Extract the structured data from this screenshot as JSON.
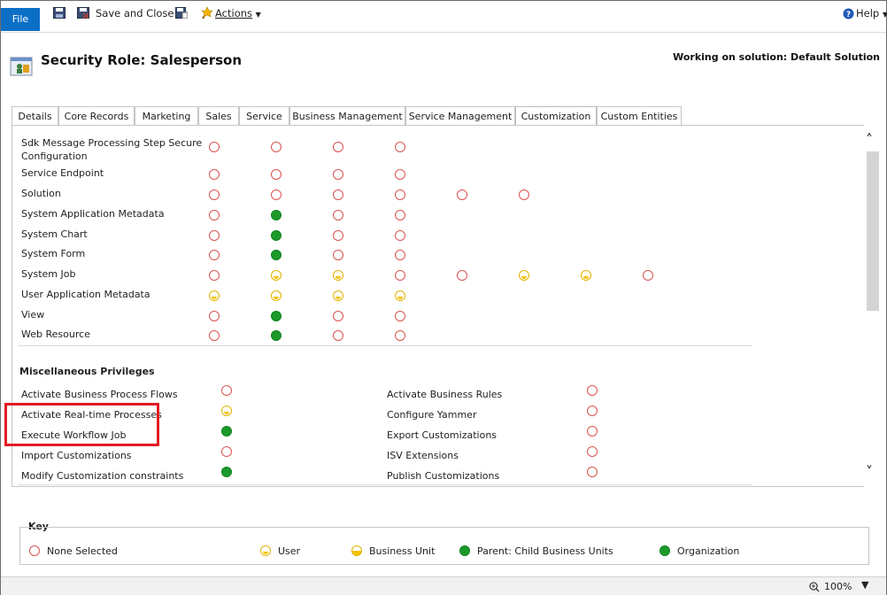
{
  "toolbar": {
    "file_label": "File",
    "save_close_label": "Save and Close",
    "actions_label": "Actions",
    "help_label": "Help"
  },
  "header": {
    "title": "Security Role: Salesperson",
    "solution": "Working on solution: Default Solution"
  },
  "tabs": [
    {
      "label": "Details"
    },
    {
      "label": "Core Records"
    },
    {
      "label": "Marketing"
    },
    {
      "label": "Sales"
    },
    {
      "label": "Service"
    },
    {
      "label": "Business Management"
    },
    {
      "label": "Service Management"
    },
    {
      "label": "Customization",
      "active": true
    },
    {
      "label": "Custom Entities"
    }
  ],
  "entity_rows": [
    {
      "label": "Sdk Message Processing Step Secure Configuration",
      "privileges": [
        "none",
        "none",
        "none",
        "none"
      ]
    },
    {
      "label": "Service Endpoint",
      "privileges": [
        "none",
        "none",
        "none",
        "none"
      ]
    },
    {
      "label": "Solution",
      "privileges": [
        "none",
        "none",
        "none",
        "none",
        "none",
        "none"
      ]
    },
    {
      "label": "System Application Metadata",
      "privileges": [
        "none",
        "org",
        "none",
        "none"
      ]
    },
    {
      "label": "System Chart",
      "privileges": [
        "none",
        "org",
        "none",
        "none"
      ]
    },
    {
      "label": "System Form",
      "privileges": [
        "none",
        "org",
        "none",
        "none"
      ]
    },
    {
      "label": "System Job",
      "privileges": [
        "none",
        "user",
        "user",
        "none",
        "none",
        "user",
        "user",
        "none"
      ]
    },
    {
      "label": "User Application Metadata",
      "privileges": [
        "user",
        "user",
        "user",
        "user"
      ]
    },
    {
      "label": "View",
      "privileges": [
        "none",
        "org",
        "none",
        "none"
      ]
    },
    {
      "label": "Web Resource",
      "privileges": [
        "none",
        "org",
        "none",
        "none"
      ]
    }
  ],
  "misc": {
    "heading": "Miscellaneous Privileges",
    "left": [
      {
        "label": "Activate Business Process Flows",
        "level": "none"
      },
      {
        "label": "Activate Real-time Processes",
        "level": "user"
      },
      {
        "label": "Execute Workflow Job",
        "level": "org"
      },
      {
        "label": "Import Customizations",
        "level": "none"
      },
      {
        "label": "Modify Customization constraints",
        "level": "org"
      }
    ],
    "right": [
      {
        "label": "Activate Business Rules",
        "level": "none"
      },
      {
        "label": "Configure Yammer",
        "level": "none"
      },
      {
        "label": "Export Customizations",
        "level": "none"
      },
      {
        "label": "ISV Extensions",
        "level": "none"
      },
      {
        "label": "Publish Customizations",
        "level": "none"
      }
    ]
  },
  "key": {
    "title": "Key",
    "items": [
      {
        "label": "None Selected",
        "level": "none"
      },
      {
        "label": "User",
        "level": "user"
      },
      {
        "label": "Business Unit",
        "level": "bu"
      },
      {
        "label": "Parent: Child Business Units",
        "level": "pc"
      },
      {
        "label": "Organization",
        "level": "org"
      }
    ]
  },
  "status": {
    "zoom": "100%"
  },
  "colors": {
    "file_button": "#0b6fc6",
    "none": "#d9534f",
    "organization": "#1b9a2a",
    "user": "#f4c400",
    "highlight": "#e11b22"
  }
}
